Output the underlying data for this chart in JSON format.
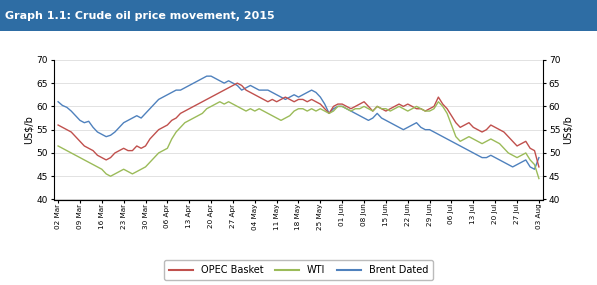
{
  "title": "Graph 1.1: Crude oil price movement, 2015",
  "title_bg_color": "#2E6DA4",
  "title_text_color": "#FFFFFF",
  "ylabel_left": "US$/b",
  "ylabel_right": "US$/b",
  "ylim": [
    40,
    70
  ],
  "yticks": [
    40,
    45,
    50,
    55,
    60,
    65,
    70
  ],
  "line_colors": {
    "opec": "#C0504D",
    "wti": "#9BBB59",
    "brent": "#4F81BD"
  },
  "legend_labels": [
    "OPEC Basket",
    "WTI",
    "Brent Dated"
  ],
  "x_tick_positions": [
    0,
    5,
    10,
    15,
    20,
    25,
    30,
    35,
    40,
    45,
    50,
    55,
    60,
    65,
    70,
    75,
    80,
    85,
    90,
    95,
    100,
    105,
    110
  ],
  "x_tick_labels": [
    "02 Mar",
    "09 Mar",
    "16 Mar",
    "23 Mar",
    "30 Mar",
    "06 Apr",
    "13 Apr",
    "20 Apr",
    "27 Apr",
    "04 May",
    "11 May",
    "18 May",
    "25 May",
    "01 Jun",
    "08 Jun",
    "15 Jun",
    "22 Jun",
    "29 Jun",
    "06 Jul",
    "13 Jul",
    "20 Jul",
    "27 Jul",
    "03 Aug"
  ],
  "brent": [
    61.0,
    60.2,
    59.8,
    59.0,
    58.0,
    57.0,
    56.5,
    56.8,
    55.5,
    54.5,
    54.0,
    53.5,
    53.8,
    54.5,
    55.5,
    56.5,
    57.0,
    57.5,
    58.0,
    57.5,
    58.5,
    59.5,
    60.5,
    61.5,
    62.0,
    62.5,
    63.0,
    63.5,
    63.5,
    64.0,
    64.5,
    65.0,
    65.5,
    66.0,
    66.5,
    66.5,
    66.0,
    65.5,
    65.0,
    65.5,
    65.0,
    64.5,
    63.5,
    64.0,
    64.5,
    64.0,
    63.5,
    63.5,
    63.5,
    63.0,
    62.5,
    62.0,
    61.5,
    62.0,
    62.5,
    62.0,
    62.5,
    63.0,
    63.5,
    63.0,
    62.0,
    60.5,
    58.5,
    59.5,
    60.0,
    60.0,
    59.5,
    59.0,
    58.5,
    58.0,
    57.5,
    57.0,
    57.5,
    58.5,
    57.5,
    57.0,
    56.5,
    56.0,
    55.5,
    55.0,
    55.5,
    56.0,
    56.5,
    55.5,
    55.0,
    55.0,
    54.5,
    54.0,
    53.5,
    53.0,
    52.5,
    52.0,
    51.5,
    51.0,
    50.5,
    50.0,
    49.5,
    49.0,
    49.0,
    49.5,
    49.0,
    48.5,
    48.0,
    47.5,
    47.0,
    47.5,
    48.0,
    48.5,
    47.0,
    46.5,
    49.0
  ],
  "opec": [
    56.0,
    55.5,
    55.0,
    54.5,
    53.5,
    52.5,
    51.5,
    51.0,
    50.5,
    49.5,
    49.0,
    48.5,
    49.0,
    50.0,
    50.5,
    51.0,
    50.5,
    50.5,
    51.5,
    51.0,
    51.5,
    53.0,
    54.0,
    55.0,
    55.5,
    56.0,
    57.0,
    57.5,
    58.5,
    59.0,
    59.5,
    60.0,
    60.5,
    61.0,
    61.5,
    62.0,
    62.5,
    63.0,
    63.5,
    64.0,
    64.5,
    65.0,
    64.5,
    63.5,
    63.0,
    62.5,
    62.0,
    61.5,
    61.0,
    61.5,
    61.0,
    61.5,
    62.0,
    61.5,
    61.0,
    61.5,
    61.5,
    61.0,
    61.5,
    61.0,
    60.5,
    59.5,
    58.5,
    60.0,
    60.5,
    60.5,
    60.0,
    59.5,
    60.0,
    60.5,
    61.0,
    60.0,
    59.0,
    60.0,
    59.5,
    59.0,
    59.5,
    60.0,
    60.5,
    60.0,
    60.5,
    60.0,
    59.5,
    59.5,
    59.0,
    59.5,
    60.0,
    62.0,
    60.5,
    59.5,
    58.0,
    56.5,
    55.5,
    56.0,
    56.5,
    55.5,
    55.0,
    54.5,
    55.0,
    56.0,
    55.5,
    55.0,
    54.5,
    53.5,
    52.5,
    51.5,
    52.0,
    52.5,
    51.0,
    50.5,
    47.0
  ],
  "wti": [
    51.5,
    51.0,
    50.5,
    50.0,
    49.5,
    49.0,
    48.5,
    48.0,
    47.5,
    47.0,
    46.5,
    45.5,
    45.0,
    45.5,
    46.0,
    46.5,
    46.0,
    45.5,
    46.0,
    46.5,
    47.0,
    48.0,
    49.0,
    50.0,
    50.5,
    51.0,
    53.0,
    54.5,
    55.5,
    56.5,
    57.0,
    57.5,
    58.0,
    58.5,
    59.5,
    60.0,
    60.5,
    61.0,
    60.5,
    61.0,
    60.5,
    60.0,
    59.5,
    59.0,
    59.5,
    59.0,
    59.5,
    59.0,
    58.5,
    58.0,
    57.5,
    57.0,
    57.5,
    58.0,
    59.0,
    59.5,
    59.5,
    59.0,
    59.5,
    59.0,
    59.5,
    59.0,
    58.5,
    59.0,
    60.0,
    60.0,
    59.5,
    59.0,
    59.5,
    59.5,
    60.0,
    59.5,
    59.0,
    60.0,
    59.5,
    59.5,
    59.0,
    59.5,
    60.0,
    59.5,
    59.0,
    59.5,
    60.0,
    59.5,
    59.0,
    59.0,
    59.5,
    61.0,
    60.0,
    58.5,
    56.0,
    53.5,
    52.5,
    53.0,
    53.5,
    53.0,
    52.5,
    52.0,
    52.5,
    53.0,
    52.5,
    52.0,
    51.0,
    50.0,
    49.5,
    49.0,
    49.5,
    50.0,
    48.5,
    47.5,
    44.5
  ]
}
